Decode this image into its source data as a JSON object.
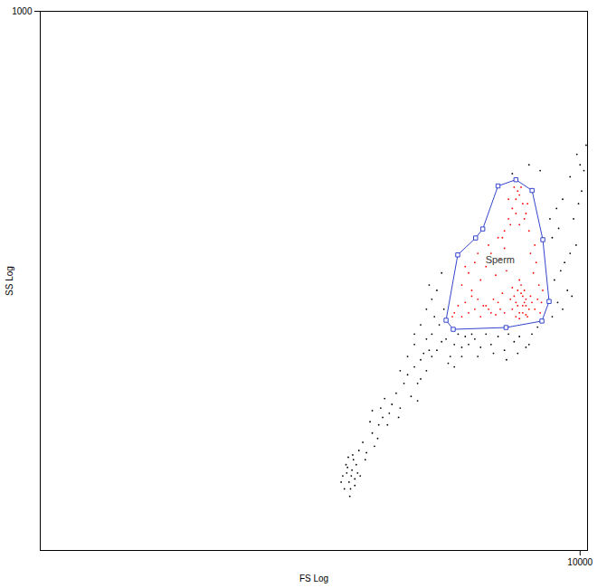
{
  "chart_data": {
    "type": "scatter",
    "x_label": "FS Log",
    "y_label": "SS Log",
    "log": true,
    "grid": false,
    "xlim": [
      10,
      11000
    ],
    "ylim": [
      1,
      1000
    ],
    "xticks": [
      10000
    ],
    "yticks": [
      1000
    ],
    "series": [
      {
        "color": "#000000",
        "marker": "dot",
        "x": [
          480,
          520,
          540,
          560,
          500,
          530,
          580,
          510,
          550,
          600,
          470,
          525,
          545,
          570,
          490,
          535,
          515,
          560,
          505,
          590,
          620,
          650,
          700,
          680,
          750,
          720,
          800,
          780,
          850,
          900,
          640,
          760,
          820,
          870,
          700,
          950,
          1000,
          1050,
          1100,
          1150,
          1200,
          1250,
          1300,
          1350,
          1400,
          1450,
          1500,
          1000,
          1100,
          1200,
          1300,
          1400,
          1500,
          980,
          1250,
          1600,
          1700,
          1800,
          1900,
          2000,
          2100,
          2200,
          2300,
          2400,
          1650,
          1750,
          1550,
          1600,
          1700,
          1850,
          2000,
          2200,
          2500,
          2600,
          2800,
          3000,
          3200,
          3500,
          3800,
          4000,
          4300,
          4600,
          5000,
          5400,
          5800,
          2700,
          3300,
          3900,
          4500,
          5200,
          7000,
          7500,
          8000,
          8500,
          9000,
          7200,
          7800,
          8200,
          8800,
          9500,
          7000,
          7600,
          6800,
          7400,
          8000,
          9200,
          9800,
          10200,
          10500,
          9600,
          10800,
          8800,
          10000,
          1300,
          1400,
          1500,
          1200,
          1450,
          5200,
          6000,
          4200
        ],
        "y": [
          2.6,
          2.4,
          2.8,
          2.5,
          3.0,
          2.2,
          2.7,
          2.9,
          3.2,
          2.6,
          2.4,
          2.0,
          3.4,
          3.0,
          2.2,
          2.6,
          3.3,
          2.3,
          2.7,
          3.6,
          4.0,
          3.5,
          4.5,
          5.2,
          4.2,
          3.8,
          5.5,
          6.2,
          5.0,
          6.5,
          3.2,
          5.0,
          7.0,
          5.8,
          6.0,
          7.5,
          6.2,
          8.5,
          9.5,
          7.2,
          10.5,
          8.5,
          11.5,
          12.5,
          10,
          13,
          12,
          10,
          12,
          14,
          9,
          15,
          16,
          5.5,
          6.8,
          13,
          14.5,
          15,
          12,
          14,
          16,
          13.5,
          15.5,
          14,
          18,
          22,
          20,
          28,
          35,
          11,
          10.5,
          12,
          16,
          15,
          13.5,
          16,
          14,
          15.5,
          13,
          16,
          14.5,
          15.5,
          13.5,
          16,
          17.5,
          12,
          12.5,
          11.5,
          12.5,
          14,
          20,
          24,
          22,
          28,
          26,
          32,
          36,
          40,
          45,
          50,
          55,
          62,
          70,
          80,
          90,
          70,
          85,
          100,
          130,
          160,
          180,
          120,
          140,
          18,
          22,
          25,
          16,
          30,
          140,
          130,
          125
        ]
      },
      {
        "color": "#ff0000",
        "marker": "dot",
        "x": [
          4200,
          4400,
          4600,
          4800,
          5000,
          5200,
          4300,
          4500,
          4700,
          4900,
          5100,
          4400,
          4600,
          4800,
          5000,
          4100,
          4700,
          5300,
          4500,
          4900,
          5400,
          4600,
          4200,
          5000,
          4800,
          2200,
          2400,
          2600,
          2800,
          3000,
          3200,
          3400,
          3600,
          3800,
          2300,
          2500,
          2700,
          2900,
          3100,
          3300,
          3500,
          3700,
          2000,
          2100,
          1950,
          2200,
          2400,
          2600,
          2800,
          3000,
          3200,
          3400,
          3600,
          3800,
          2300,
          2700,
          3100,
          3500,
          3900,
          2500,
          3800,
          4000,
          4200,
          4400,
          4600,
          4800,
          5000,
          4100,
          4500,
          4900,
          5200,
          4300,
          4700,
          3700,
          4000,
          4400,
          4600,
          5100,
          5600,
          5800,
          6000,
          6200,
          5500,
          5700,
          5900,
          6100,
          5300,
          5600
        ],
        "y": [
          22,
          24,
          21,
          23,
          25,
          22,
          26,
          28,
          27,
          24,
          20,
          20,
          19.5,
          21,
          23,
          25,
          30,
          26,
          23,
          28,
          24,
          32,
          29,
          20.5,
          26,
          20,
          21,
          22,
          20,
          23,
          21,
          20.5,
          22,
          21,
          24,
          26,
          25,
          23,
          22,
          25,
          24,
          27,
          21,
          23,
          20,
          30,
          35,
          40,
          32,
          38,
          45,
          34,
          42,
          48,
          38,
          45,
          50,
          55,
          36,
          28,
          60,
          70,
          80,
          90,
          95,
          85,
          75,
          65,
          100,
          70,
          60,
          105,
          105,
          55,
          90,
          75,
          65,
          85,
          22,
          25,
          21,
          28,
          35,
          40,
          30,
          24,
          45,
          50
        ]
      }
    ],
    "gate": {
      "label": "Sperm",
      "color": "#3344cc",
      "marker": "square",
      "x": [
        1799,
        1972,
        3878,
        6134,
        6725,
        6207,
        5408,
        4399,
        3499,
        2878,
        2626,
        2089
      ],
      "y": [
        19.1,
        17.0,
        17.4,
        18.9,
        24.3,
        53.6,
        100.7,
        115.6,
        106.7,
        61.5,
        54.8,
        44.1
      ]
    }
  }
}
